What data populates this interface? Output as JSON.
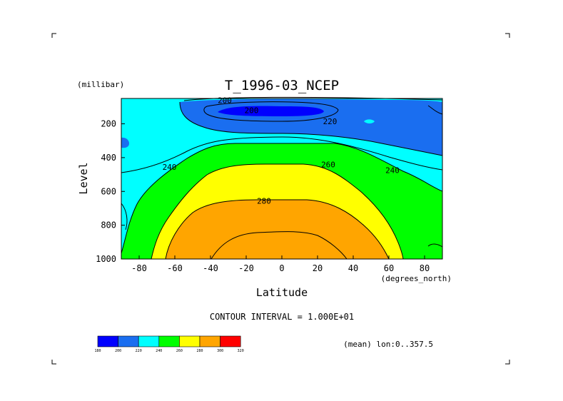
{
  "chart_data": {
    "type": "contour",
    "title": "T_1996-03_NCEP",
    "xlabel": "Latitude",
    "x_units": "(degrees_north)",
    "ylabel": "Level",
    "y_units": "(millibar)",
    "xlim": [
      -90,
      90
    ],
    "ylim": [
      1000,
      50
    ],
    "x_ticks": [
      -80,
      -60,
      -40,
      -20,
      0,
      20,
      40,
      60,
      80
    ],
    "y_ticks": [
      200,
      400,
      600,
      800,
      1000
    ],
    "contour_interval_label": "CONTOUR INTERVAL = 1.000E+01",
    "mean_label": "(mean) lon:0..357.5",
    "contour_labels": [
      {
        "text": "200",
        "lat": -32,
        "lev": 60
      },
      {
        "text": "200",
        "lat": -17,
        "lev": 120
      },
      {
        "text": "220",
        "lat": 27,
        "lev": 185
      },
      {
        "text": "240",
        "lat": -63,
        "lev": 455
      },
      {
        "text": "240",
        "lat": 62,
        "lev": 475
      },
      {
        "text": "260",
        "lat": 26,
        "lev": 440
      },
      {
        "text": "280",
        "lat": -10,
        "lev": 655
      }
    ],
    "legend": {
      "colors": [
        "#0000ff",
        "#1a6ef0",
        "#00ffff",
        "#00ff00",
        "#ffff00",
        "#ffa500",
        "#ff0000"
      ],
      "labels": [
        "180",
        "200",
        "220",
        "240",
        "260",
        "280",
        "300",
        "320"
      ]
    }
  }
}
